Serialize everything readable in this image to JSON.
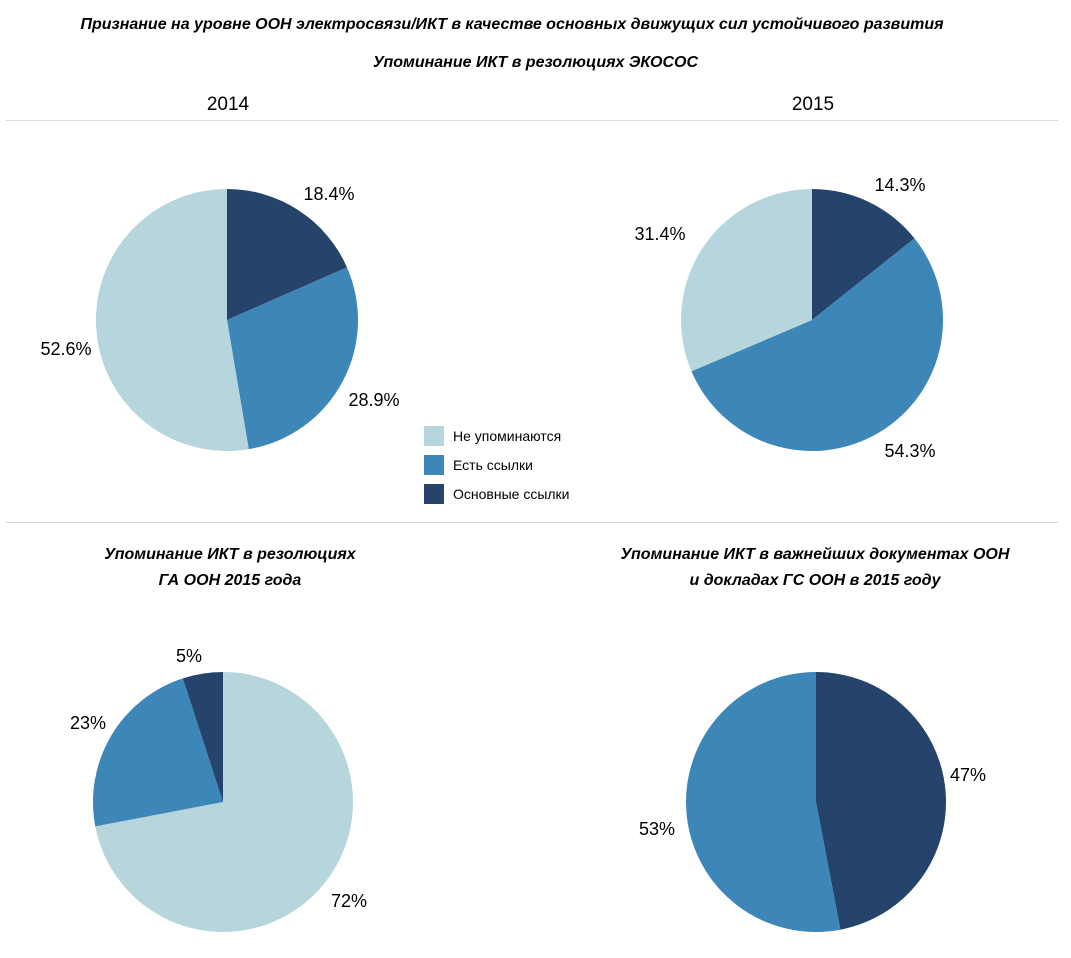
{
  "title": "Признание на уровне ООН электросвязи/ИКТ в качестве основных движущих сил устойчивого развития",
  "ecosoc_title": "Упоминание ИКТ в резолюциях ЭКОСОС",
  "legend": [
    {
      "label": "Не упоминаются",
      "color": "#b7d5dc"
    },
    {
      "label": "Есть ссылки",
      "color": "#3c86b8"
    },
    {
      "label": "Основные ссылки",
      "color": "#26446b"
    }
  ],
  "colors": {
    "none": "#b7d5dc",
    "refs": "#3c86b8",
    "main": "#26446b",
    "divider": "#d9d9d9"
  },
  "chart_data": [
    {
      "type": "pie",
      "title": "2014",
      "categories": [
        "Основные ссылки",
        "Есть ссылки",
        "Не упоминаются"
      ],
      "values": [
        18.4,
        28.9,
        52.6
      ],
      "labels": [
        "18.4%",
        "28.9%",
        "52.6%"
      ]
    },
    {
      "type": "pie",
      "title": "2015",
      "categories": [
        "Основные ссылки",
        "Есть ссылки",
        "Не упоминаются"
      ],
      "values": [
        14.3,
        54.3,
        31.4
      ],
      "labels": [
        "14.3%",
        "54.3%",
        "31.4%"
      ]
    },
    {
      "type": "pie",
      "title_lines": [
        "Упоминание ИКТ в резолюциях",
        "ГА ООН 2015 года"
      ],
      "categories": [
        "Не упоминаются",
        "Есть ссылки",
        "Основные ссылки"
      ],
      "values": [
        72,
        23,
        5
      ],
      "labels": [
        "72%",
        "23%",
        "5%"
      ]
    },
    {
      "type": "pie",
      "title_lines": [
        "Упоминание ИКТ в важнейших документах ООН",
        "и докладах ГС ООН в 2015 году"
      ],
      "categories": [
        "Основные ссылки",
        "Есть ссылки"
      ],
      "values": [
        47,
        53
      ],
      "labels": [
        "47%",
        "53%"
      ]
    }
  ]
}
